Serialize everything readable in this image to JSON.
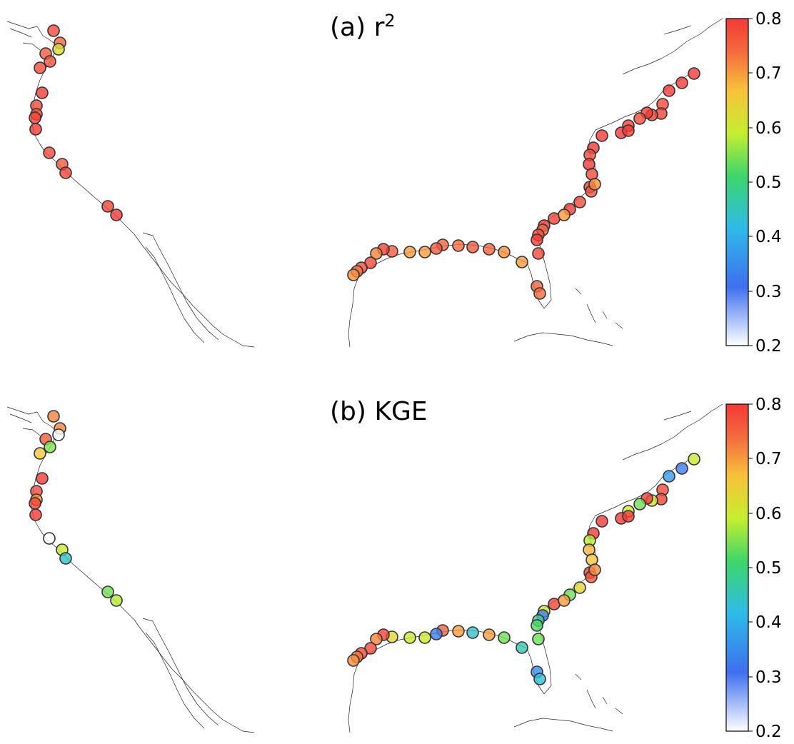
{
  "panels": [
    {
      "id": "a",
      "title_main": "(a) r",
      "title_sup": "2",
      "colorbar": {
        "ticks": [
          "0.8",
          "0.7",
          "0.6",
          "0.5",
          "0.4",
          "0.3",
          "0.2"
        ]
      },
      "sites": [
        [
          0.78,
          0.73
        ],
        [
          0.75,
          0.7
        ],
        [
          0.62,
          0.62
        ],
        [
          0.76,
          0.8
        ],
        [
          0.77,
          0.76
        ],
        [
          0.78,
          0.8
        ],
        [
          0.8,
          0.78
        ],
        [
          0.78,
          0.8
        ],
        [
          0.77,
          0.72
        ],
        [
          0.79,
          0.78
        ],
        [
          0.8,
          0.75
        ],
        [
          0.78,
          0.8
        ],
        [
          0.76,
          0.68
        ],
        [
          0.79,
          0.6
        ],
        [
          0.79,
          0.57
        ],
        [
          0.8,
          0.53
        ],
        [
          0.81,
          0.55
        ],
        [
          0.81,
          0.63
        ],
        [
          0.8,
          0.65
        ],
        [
          0.78,
          0.72
        ],
        [
          0.79,
          0.6
        ],
        [
          0.79,
          0.72
        ],
        [
          0.8,
          0.72
        ],
        [
          0.78,
          0.56
        ],
        [
          0.79,
          0.68
        ],
        [
          0.81,
          0.8
        ],
        [
          0.8,
          0.8
        ],
        [
          0.81,
          0.62
        ],
        [
          0.78,
          0.58
        ],
        [
          0.8,
          0.62
        ],
        [
          0.78,
          0.7
        ],
        [
          0.79,
          0.77
        ],
        [
          0.77,
          0.8
        ],
        [
          0.78,
          0.6
        ],
        [
          0.8,
          0.54
        ],
        [
          0.79,
          0.72
        ],
        [
          0.8,
          0.6
        ],
        [
          0.75,
          0.72
        ],
        [
          0.78,
          0.53
        ],
        [
          0.8,
          0.45
        ],
        [
          0.78,
          0.52
        ],
        [
          0.75,
          0.42
        ],
        [
          0.74,
          0.47
        ],
        [
          0.7,
          0.47
        ],
        [
          0.71,
          0.53
        ],
        [
          0.75,
          0.56
        ],
        [
          0.76,
          0.55
        ],
        [
          0.74,
          0.63
        ],
        [
          0.75,
          0.78
        ],
        [
          0.76,
          0.68
        ],
        [
          0.7,
          0.6
        ],
        [
          0.7,
          0.65
        ],
        [
          0.76,
          0.69
        ],
        [
          0.79,
          0.73
        ],
        [
          0.72,
          0.56
        ],
        [
          0.78,
          0.59
        ],
        [
          0.78,
          0.6
        ],
        [
          0.73,
          0.67
        ],
        [
          0.71,
          0.75
        ],
        [
          0.8,
          0.65
        ],
        [
          0.71,
          0.78
        ],
        [
          0.7,
          0.64
        ],
        [
          0.72,
          0.75
        ],
        [
          0.78,
          0.72
        ],
        [
          0.8,
          0.67
        ],
        [
          0.77,
          0.6
        ],
        [
          0.72,
          0.63
        ],
        [
          0.79,
          0.78
        ],
        [
          0.78,
          0.55
        ],
        [
          0.8,
          0.61
        ]
      ]
    },
    {
      "id": "b",
      "title_main": "(b) KGE",
      "title_sup": "",
      "colorbar": {
        "ticks": [
          "0.8",
          "0.7",
          "0.6",
          "0.5",
          "0.4",
          "0.3",
          "0.2"
        ]
      },
      "sites": [
        [
          0.72,
          0.73
        ],
        [
          0.72,
          0.7
        ],
        [
          0.2,
          0.62
        ],
        [
          0.76,
          0.8
        ],
        [
          0.55,
          0.76
        ],
        [
          0.66,
          0.8
        ],
        [
          0.8,
          0.78
        ],
        [
          0.78,
          0.8
        ],
        [
          0.7,
          0.72
        ],
        [
          0.79,
          0.78
        ],
        [
          0.8,
          0.75
        ],
        [
          0.2,
          0.8
        ],
        [
          0.6,
          0.68
        ],
        [
          0.44,
          0.6
        ],
        [
          0.54,
          0.57
        ],
        [
          0.58,
          0.53
        ],
        [
          0.6,
          0.55
        ],
        [
          0.33,
          0.63
        ],
        [
          0.37,
          0.65
        ],
        [
          0.78,
          0.72
        ],
        [
          0.79,
          0.6
        ],
        [
          0.6,
          0.72
        ],
        [
          0.8,
          0.72
        ],
        [
          0.54,
          0.56
        ],
        [
          0.6,
          0.68
        ],
        [
          0.81,
          0.8
        ],
        [
          0.8,
          0.8
        ],
        [
          0.81,
          0.62
        ],
        [
          0.58,
          0.58
        ],
        [
          0.68,
          0.62
        ],
        [
          0.66,
          0.7
        ],
        [
          0.79,
          0.77
        ],
        [
          0.77,
          0.8
        ],
        [
          0.63,
          0.6
        ],
        [
          0.54,
          0.54
        ],
        [
          0.79,
          0.72
        ],
        [
          0.6,
          0.6
        ],
        [
          0.33,
          0.72
        ],
        [
          0.48,
          0.53
        ],
        [
          0.52,
          0.45
        ],
        [
          0.54,
          0.52
        ],
        [
          0.35,
          0.42
        ],
        [
          0.43,
          0.47
        ],
        [
          0.46,
          0.47
        ],
        [
          0.54,
          0.53
        ],
        [
          0.7,
          0.56
        ],
        [
          0.44,
          0.55
        ],
        [
          0.7,
          0.63
        ],
        [
          0.75,
          0.78
        ],
        [
          0.33,
          0.68
        ],
        [
          0.6,
          0.6
        ],
        [
          0.6,
          0.65
        ],
        [
          0.63,
          0.69
        ],
        [
          0.79,
          0.73
        ],
        [
          0.72,
          0.56
        ],
        [
          0.78,
          0.59
        ],
        [
          0.78,
          0.6
        ],
        [
          0.73,
          0.67
        ],
        [
          0.71,
          0.75
        ],
        [
          0.8,
          0.65
        ],
        [
          0.71,
          0.78
        ],
        [
          0.7,
          0.64
        ],
        [
          0.72,
          0.75
        ],
        [
          0.78,
          0.72
        ],
        [
          0.8,
          0.67
        ],
        [
          0.77,
          0.6
        ],
        [
          0.72,
          0.63
        ],
        [
          0.79,
          0.78
        ],
        [
          0.78,
          0.55
        ],
        [
          0.8,
          0.61
        ]
      ]
    }
  ],
  "colormap": {
    "vmin": 0.2,
    "vmax": 0.8,
    "stops": [
      "#ffffff",
      "#3e6ff0",
      "#2ebbe8",
      "#3ed66a",
      "#c6ee30",
      "#f8c23a",
      "#f46a3e",
      "#f23a36"
    ],
    "stop_positions": [
      0.0,
      0.18,
      0.36,
      0.52,
      0.65,
      0.78,
      0.9,
      1.0
    ]
  }
}
